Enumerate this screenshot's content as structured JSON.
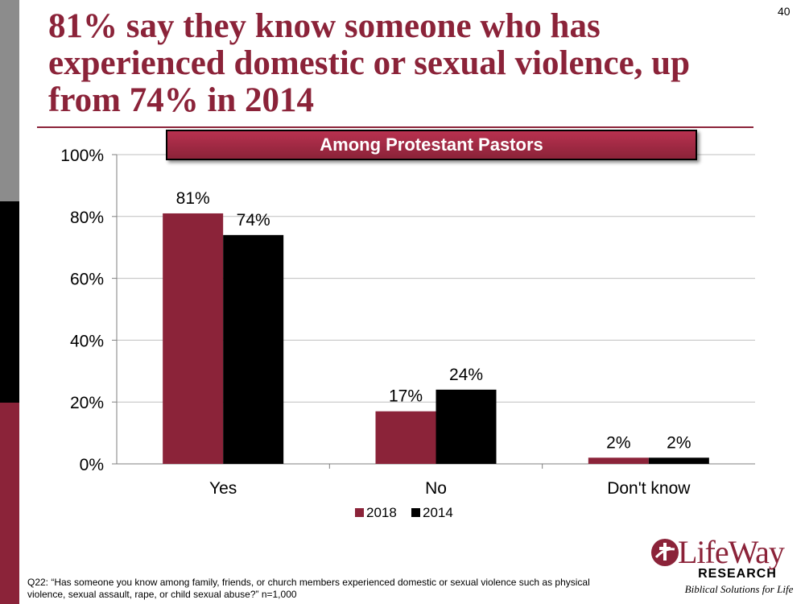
{
  "slide": {
    "number": "40"
  },
  "title": "81% say they know someone who has experienced domestic or sexual violence, up from 74% in 2014",
  "banner": "Among Protestant Pastors",
  "chart_data": {
    "type": "bar",
    "title": "Among Protestant Pastors",
    "categories": [
      "Yes",
      "No",
      "Don't know"
    ],
    "series": [
      {
        "name": "2018",
        "values": [
          81,
          17,
          2
        ],
        "labels": [
          "81%",
          "17%",
          "2%"
        ],
        "color": "#8b2339"
      },
      {
        "name": "2014",
        "values": [
          74,
          24,
          2
        ],
        "labels": [
          "74%",
          "24%",
          "2%"
        ],
        "color": "#000000"
      }
    ],
    "ylim": [
      0,
      100
    ],
    "yticks": [
      0,
      20,
      40,
      60,
      80,
      100
    ],
    "ytick_labels": [
      "0%",
      "20%",
      "40%",
      "60%",
      "80%",
      "100%"
    ],
    "xlabel": "",
    "ylabel": "",
    "grid": true,
    "legend_position": "bottom"
  },
  "footnote": "Q22: “Has someone you know among family, friends, or church members experienced domestic or sexual violence such as physical violence, sexual assault, rape, or child sexual abuse?” n=1,000",
  "logo": {
    "brand": "LifeWay",
    "sub": "RESEARCH",
    "tagline": "Biblical Solutions for Life",
    "color": "#8b2339"
  }
}
